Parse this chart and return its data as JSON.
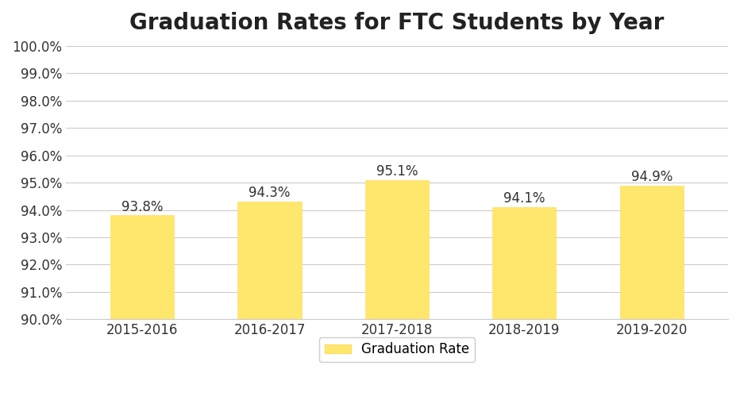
{
  "title": "Graduation Rates for FTC Students by Year",
  "categories": [
    "2015-2016",
    "2016-2017",
    "2017-2018",
    "2018-2019",
    "2019-2020"
  ],
  "values": [
    93.8,
    94.3,
    95.1,
    94.1,
    94.9
  ],
  "bar_color": "#FFE66D",
  "bar_edgecolor": "#FFE066",
  "ylim": [
    90.0,
    100.0
  ],
  "yticks": [
    90.0,
    91.0,
    92.0,
    93.0,
    94.0,
    95.0,
    96.0,
    97.0,
    98.0,
    99.0,
    100.0
  ],
  "ytick_labels": [
    "90.0%",
    "91.0%",
    "92.0%",
    "93.0%",
    "94.0%",
    "95.0%",
    "96.0%",
    "97.0%",
    "98.0%",
    "99.0%",
    "100.0%"
  ],
  "title_fontsize": 20,
  "tick_fontsize": 12,
  "label_fontsize": 12,
  "annotation_fontsize": 12,
  "legend_label": "Graduation Rate",
  "grid_color": "#cccccc",
  "background_color": "#ffffff"
}
